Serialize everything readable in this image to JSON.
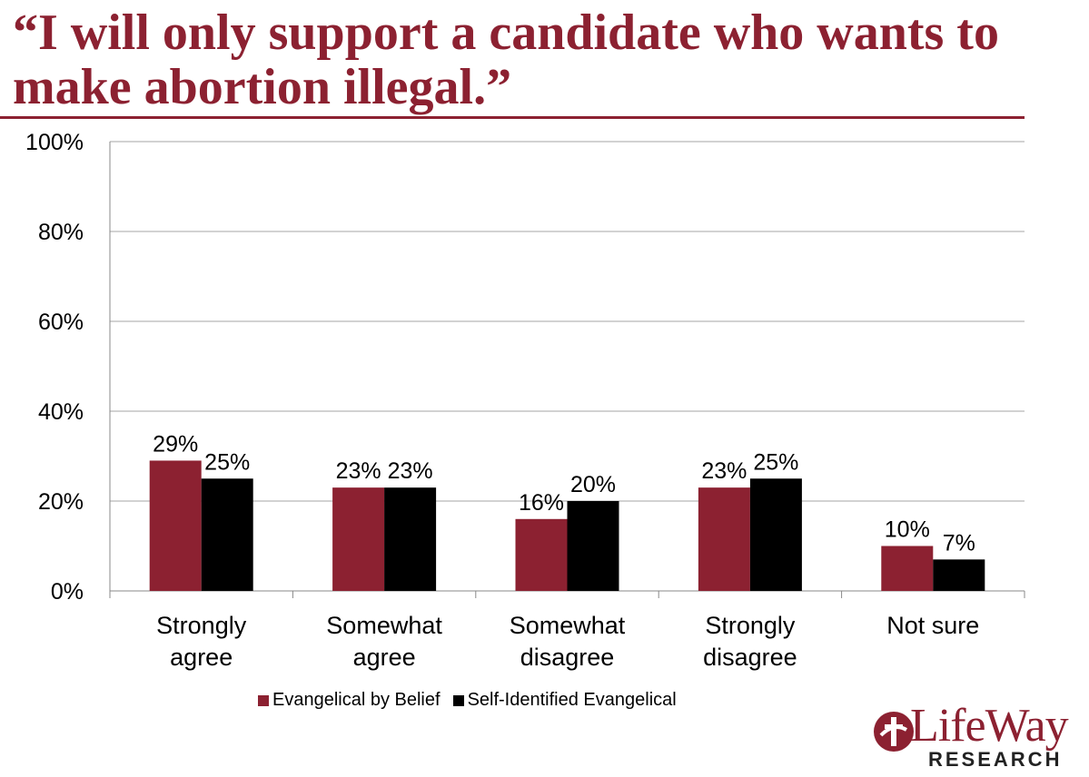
{
  "title": "“I will only support a candidate who wants to make abortion illegal.”",
  "logo": {
    "name": "LifeWay",
    "subtitle": "RESEARCH",
    "icon": "lifeway-cross-logo-icon"
  },
  "colors": {
    "belief": "#8c2131",
    "self": "#000000",
    "grid": "#a6a6a6",
    "title": "#8c2131"
  },
  "chart_data": {
    "type": "bar",
    "categories": [
      [
        "Strongly",
        "agree"
      ],
      [
        "Somewhat",
        "agree"
      ],
      [
        "Somewhat",
        "disagree"
      ],
      [
        "Strongly",
        "disagree"
      ],
      [
        "Not sure"
      ]
    ],
    "series": [
      {
        "name": "Evangelical by Belief",
        "values": [
          29,
          23,
          16,
          23,
          10
        ],
        "labels": [
          "29%",
          "23%",
          "16%",
          "23%",
          "10%"
        ]
      },
      {
        "name": "Self-Identified Evangelical",
        "values": [
          25,
          23,
          20,
          25,
          7
        ],
        "labels": [
          "25%",
          "23%",
          "20%",
          "25%",
          "7%"
        ]
      }
    ],
    "yticks": [
      "0%",
      "20%",
      "40%",
      "60%",
      "80%",
      "100%"
    ],
    "ylim": [
      0,
      100
    ],
    "grid": true,
    "legend": "bottom"
  }
}
